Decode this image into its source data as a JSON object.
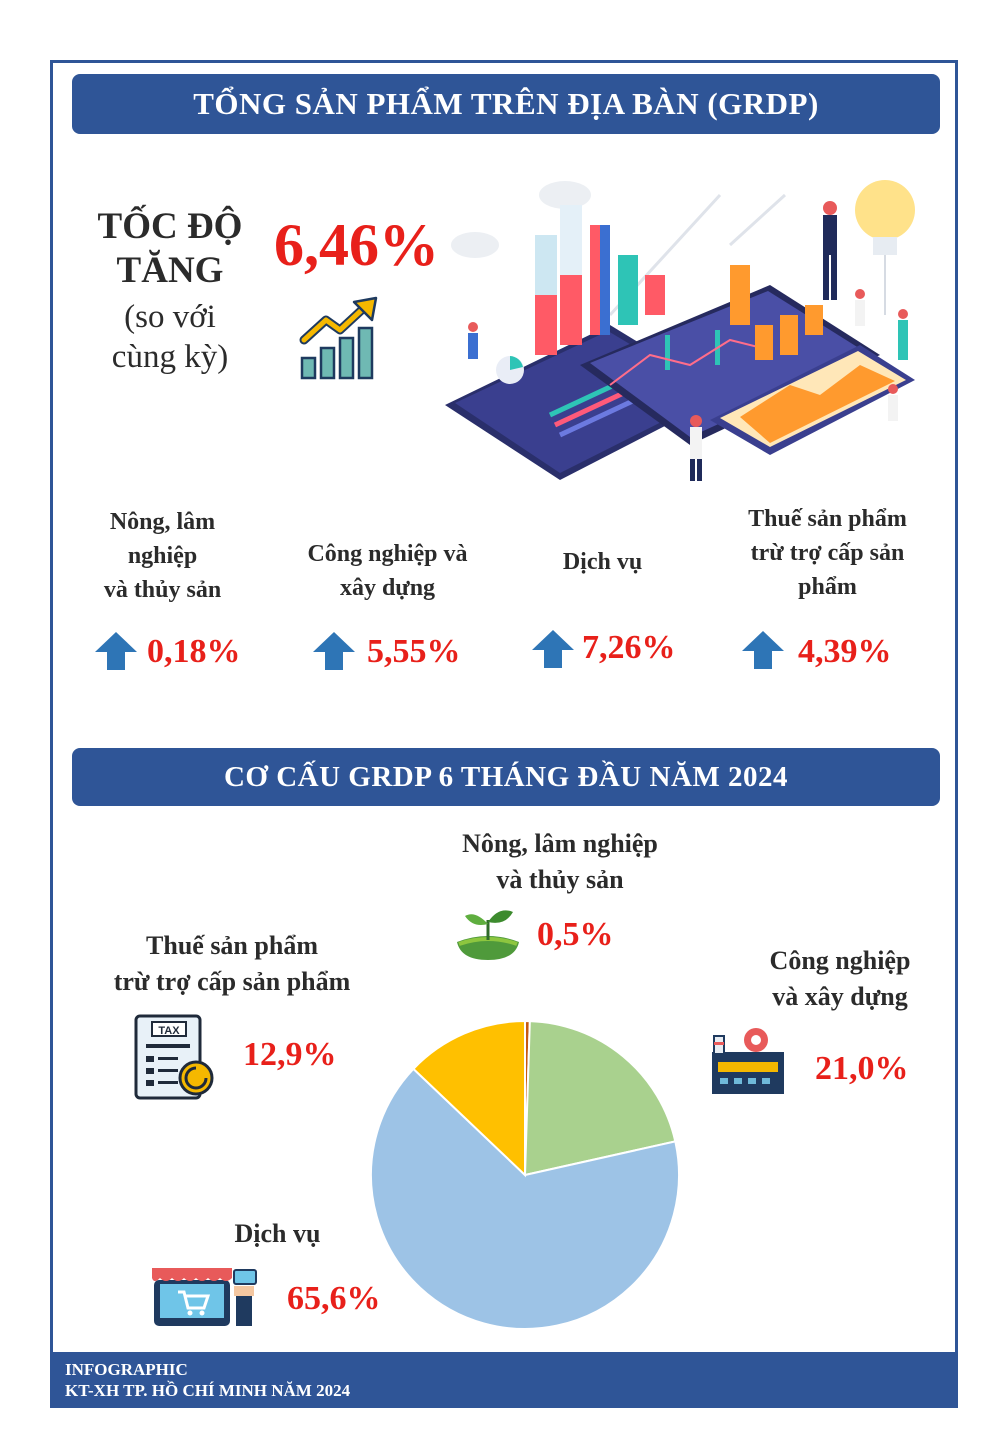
{
  "header": {
    "title": "TỔNG SẢN PHẨM TRÊN ĐỊA BÀN (GRDP)"
  },
  "growth": {
    "label_line1": "TỐC ĐỘ",
    "label_line2": "TĂNG",
    "sub_line1": "(so với",
    "sub_line2": "cùng kỳ)",
    "value": "6,46%"
  },
  "sectors": [
    {
      "name_line1": "Nông, lâm",
      "name_line2": "nghiệp",
      "name_line3": "và thủy sản",
      "value": "0,18%"
    },
    {
      "name_line1": "Công nghiệp và",
      "name_line2": "xây dựng",
      "value": "5,55%"
    },
    {
      "name_line1": "Dịch vụ",
      "value": "7,26%"
    },
    {
      "name_line1": "Thuế sản phẩm",
      "name_line2": "trừ trợ cấp sản",
      "name_line3": "phẩm",
      "value": "4,39%"
    }
  ],
  "structure": {
    "title": "CƠ CẤU GRDP 6 THÁNG ĐẦU NĂM 2024"
  },
  "pie_labels": {
    "agri": {
      "line1": "Nông, lâm nghiệp",
      "line2": "và thủy sản",
      "value": "0,5%"
    },
    "industry": {
      "line1": "Công nghiệp",
      "line2": "và xây dựng",
      "value": "21,0%"
    },
    "services": {
      "line1": "Dịch vụ",
      "value": "65,6%"
    },
    "tax": {
      "line1": "Thuế sản phẩm",
      "line2": "trừ trợ cấp sản phẩm",
      "value": "12,9%",
      "icon_text": "TAX"
    }
  },
  "footer": {
    "line1": "INFOGRAPHIC",
    "line2": "KT-XH TP. HỒ CHÍ MINH NĂM 2024"
  },
  "chart_data": {
    "type": "pie",
    "categories": [
      "Nông, lâm nghiệp và thủy sản",
      "Công nghiệp và xây dựng",
      "Dịch vụ",
      "Thuế sản phẩm trừ trợ cấp sản phẩm"
    ],
    "values": [
      0.5,
      21.0,
      65.6,
      12.9
    ],
    "colors": [
      "#c55a11",
      "#a9d18e",
      "#9dc3e6",
      "#ffc000"
    ],
    "title": "CƠ CẤU GRDP 6 THÁNG ĐẦU NĂM 2024"
  },
  "colors": {
    "banner": "#2f5597",
    "accent": "#e8201a",
    "arrow": "#2e75b6"
  },
  "icons": [
    "trend-up-icon",
    "arrow-up-icon",
    "plant-icon",
    "factory-icon",
    "shop-icon",
    "tax-document-icon",
    "dashboard-illustration"
  ]
}
